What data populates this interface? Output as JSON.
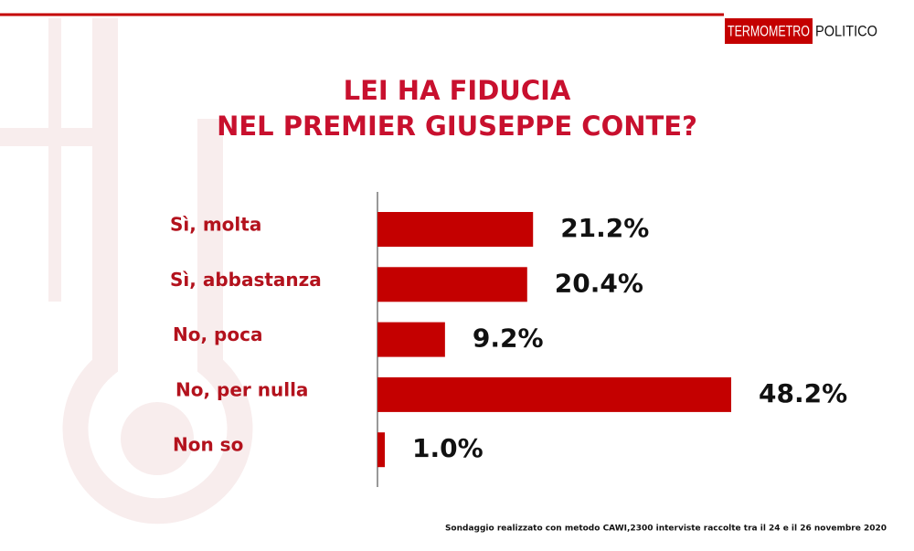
{
  "logo": {
    "first": "TERMOMETRO",
    "second": "POLITICO"
  },
  "chart_data": {
    "type": "bar",
    "orientation": "horizontal",
    "title": [
      "LEI HA FIDUCIA",
      "NEL PREMIER GIUSEPPE CONTE?"
    ],
    "categories": [
      "Sì, molta",
      "Sì, abbastanza",
      "No, poca",
      "No, per nulla",
      "Non so"
    ],
    "values": [
      21.2,
      20.4,
      9.2,
      48.2,
      1.0
    ],
    "value_labels": [
      "21.2%",
      "20.4%",
      "9.2%",
      "48.2%",
      "1.0%"
    ],
    "color": "#c40000"
  },
  "source": "Sondaggio realizzato con metodo CAWI,2300 interviste raccolte tra il 24  e il 26  novembre  2020"
}
